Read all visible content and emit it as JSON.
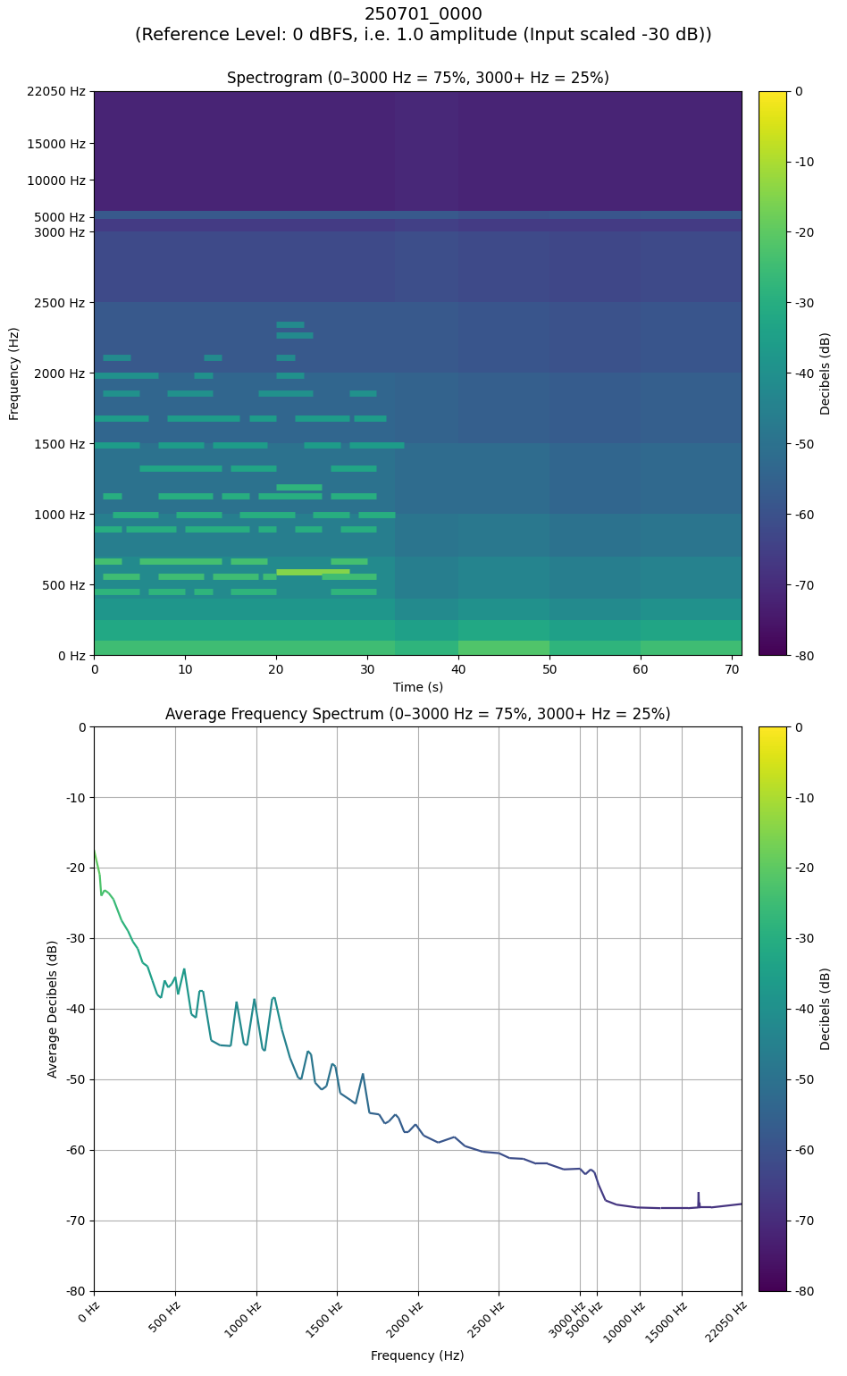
{
  "title": "250701_0000\n(Reference Level: 0 dBFS, i.e. 1.0 amplitude (Input scaled -30 dB))",
  "chart_data": [
    {
      "type": "heatmap",
      "title": "Spectrogram (0–3000 Hz = 75%, 3000+ Hz = 25%)",
      "xlabel": "Time (s)",
      "ylabel": "Frequency (Hz)",
      "color": "viridis",
      "xlim": [
        0,
        71.1
      ],
      "xticks": [
        0,
        10,
        20,
        30,
        40,
        50,
        60,
        70
      ],
      "ylim": [
        0,
        22050
      ],
      "yticks": [
        {
          "value": 0,
          "label": "0 Hz"
        },
        {
          "value": 500,
          "label": "500 Hz"
        },
        {
          "value": 1000,
          "label": "1000 Hz"
        },
        {
          "value": 1500,
          "label": "1500 Hz"
        },
        {
          "value": 2000,
          "label": "2000 Hz"
        },
        {
          "value": 2500,
          "label": "2500 Hz"
        },
        {
          "value": 3000,
          "label": "3000 Hz"
        },
        {
          "value": 5000,
          "label": "5000 Hz"
        },
        {
          "value": 10000,
          "label": "10000 Hz"
        },
        {
          "value": 15000,
          "label": "15000 Hz"
        },
        {
          "value": 22050,
          "label": "22050 Hz"
        }
      ],
      "x_edges": [
        0,
        10,
        20,
        33,
        40,
        50,
        60,
        71.1
      ],
      "y_edges": [
        0,
        100,
        250,
        400,
        700,
        1000,
        1500,
        2000,
        2500,
        3000,
        4800,
        5800,
        22050
      ],
      "cells": [
        [
          -25,
          -25,
          -25,
          -28,
          -22,
          -28,
          -25
        ],
        [
          -32,
          -32,
          -32,
          -35,
          -32,
          -35,
          -33
        ],
        [
          -38,
          -38,
          -38,
          -42,
          -40,
          -42,
          -40
        ],
        [
          -42,
          -42,
          -42,
          -46,
          -44,
          -46,
          -45
        ],
        [
          -46,
          -46,
          -46,
          -49,
          -48,
          -50,
          -49
        ],
        [
          -50,
          -50,
          -50,
          -52,
          -52,
          -54,
          -53
        ],
        [
          -54,
          -54,
          -54,
          -55,
          -56,
          -57,
          -56
        ],
        [
          -58,
          -58,
          -58,
          -58,
          -59,
          -60,
          -59
        ],
        [
          -62,
          -62,
          -62,
          -61,
          -62,
          -63,
          -62
        ],
        [
          -66,
          -66,
          -66,
          -65,
          -66,
          -66,
          -66
        ],
        [
          -58,
          -58,
          -58,
          -58,
          -60,
          -59,
          -58
        ],
        [
          -72,
          -72,
          -72,
          -71,
          -72,
          -72,
          -72
        ]
      ],
      "notes": [
        {
          "freq": 2346,
          "db": -42,
          "spans": [
            [
              20,
              23
            ]
          ]
        },
        {
          "freq": 2270,
          "db": -42,
          "spans": [
            [
              20,
              24
            ]
          ]
        },
        {
          "freq": 2112,
          "db": -42,
          "spans": [
            [
              1,
              4
            ],
            [
              12,
              14
            ],
            [
              20,
              22
            ]
          ]
        },
        {
          "freq": 1985,
          "db": -40,
          "spans": [
            [
              0,
              7
            ],
            [
              11,
              13
            ],
            [
              20,
              23
            ]
          ]
        },
        {
          "freq": 1858,
          "db": -40,
          "spans": [
            [
              1,
              5
            ],
            [
              8,
              13
            ],
            [
              18,
              24
            ],
            [
              28,
              31
            ]
          ]
        },
        {
          "freq": 1680,
          "db": -36,
          "spans": [
            [
              0,
              6
            ],
            [
              8,
              16
            ],
            [
              17,
              20
            ],
            [
              22,
              28
            ],
            [
              28.5,
              32
            ]
          ]
        },
        {
          "freq": 1490,
          "db": -36,
          "spans": [
            [
              0,
              5
            ],
            [
              7,
              12
            ],
            [
              13,
              19
            ],
            [
              23,
              27
            ],
            [
              28,
              34
            ]
          ]
        },
        {
          "freq": 1325,
          "db": -33,
          "spans": [
            [
              5,
              14
            ],
            [
              15,
              20
            ],
            [
              26,
              31
            ]
          ]
        },
        {
          "freq": 1192,
          "db": -28,
          "spans": [
            [
              20,
              25
            ]
          ]
        },
        {
          "freq": 1129,
          "db": -30,
          "spans": [
            [
              1,
              3
            ],
            [
              7,
              13
            ],
            [
              14,
              17
            ],
            [
              18,
              25
            ],
            [
              26,
              31
            ]
          ]
        },
        {
          "freq": 995,
          "db": -30,
          "spans": [
            [
              2,
              7
            ],
            [
              9,
              14
            ],
            [
              16,
              22
            ],
            [
              24,
              28
            ],
            [
              29,
              33
            ]
          ]
        },
        {
          "freq": 894,
          "db": -30,
          "spans": [
            [
              0,
              3
            ],
            [
              3.5,
              9
            ],
            [
              10,
              17
            ],
            [
              18,
              20
            ],
            [
              22,
              25
            ],
            [
              27,
              31
            ]
          ]
        },
        {
          "freq": 666,
          "db": -24,
          "spans": [
            [
              0,
              3
            ],
            [
              5,
              14
            ],
            [
              15,
              19
            ],
            [
              26,
              30
            ]
          ]
        },
        {
          "freq": 590,
          "db": -15,
          "spans": [
            [
              20,
              28
            ]
          ]
        },
        {
          "freq": 558,
          "db": -25,
          "spans": [
            [
              1,
              5
            ],
            [
              7,
              12
            ],
            [
              13,
              18
            ],
            [
              18.5,
              20
            ],
            [
              25,
              31
            ]
          ]
        },
        {
          "freq": 450,
          "db": -28,
          "spans": [
            [
              0,
              5
            ],
            [
              6,
              10
            ],
            [
              11,
              13
            ],
            [
              15,
              20
            ],
            [
              26,
              31
            ]
          ]
        }
      ],
      "colorbar_label": "Decibels (dB)",
      "colorbar_lim": [
        -80,
        0
      ],
      "colorbar_ticks": [
        0,
        -10,
        -20,
        -30,
        -40,
        -50,
        -60,
        -70,
        -80
      ]
    },
    {
      "type": "line",
      "title": "Average Frequency Spectrum (0–3000 Hz = 75%, 3000+ Hz = 25%)",
      "xlabel": "Frequency (Hz)",
      "ylabel": "Average Decibels (dB)",
      "color": "viridis",
      "grid": true,
      "xlim": [
        0,
        22050
      ],
      "xticks": [
        {
          "value": 0,
          "label": "0 Hz"
        },
        {
          "value": 500,
          "label": "500 Hz"
        },
        {
          "value": 1000,
          "label": "1000 Hz"
        },
        {
          "value": 1500,
          "label": "1500 Hz"
        },
        {
          "value": 2000,
          "label": "2000 Hz"
        },
        {
          "value": 2500,
          "label": "2500 Hz"
        },
        {
          "value": 3000,
          "label": "3000 Hz"
        },
        {
          "value": 5000,
          "label": "5000 Hz"
        },
        {
          "value": 10000,
          "label": "10000 Hz"
        },
        {
          "value": 15000,
          "label": "15000 Hz"
        },
        {
          "value": 22050,
          "label": "22050 Hz"
        }
      ],
      "ylim": [
        -80,
        0
      ],
      "yticks": [
        0,
        -10,
        -20,
        -30,
        -40,
        -50,
        -60,
        -70,
        -80
      ],
      "x": [
        0,
        15,
        35,
        45,
        65,
        90,
        120,
        170,
        210,
        240,
        270,
        300,
        330,
        360,
        390,
        414,
        436,
        458,
        480,
        502,
        519,
        557,
        601,
        629,
        651,
        673,
        723,
        778,
        844,
        880,
        925,
        945,
        990,
        1040,
        1055,
        1100,
        1115,
        1160,
        1210,
        1260,
        1280,
        1320,
        1340,
        1365,
        1405,
        1435,
        1470,
        1490,
        1520,
        1585,
        1615,
        1660,
        1700,
        1760,
        1795,
        1820,
        1860,
        1880,
        1915,
        1940,
        1985,
        2035,
        2125,
        2225,
        2290,
        2400,
        2500,
        2565,
        2650,
        2730,
        2800,
        2900,
        3000,
        3630,
        4260,
        4700,
        5200,
        6000,
        7300,
        9700,
        12500,
        15700,
        16900,
        16950,
        17000,
        17050,
        17100,
        18400,
        22050
      ],
      "values": [
        -17.5,
        -19,
        -21,
        -24,
        -23.2,
        -23.6,
        -24.5,
        -27.5,
        -29,
        -30.5,
        -31.5,
        -33.5,
        -34,
        -36,
        -38,
        -38.5,
        -36,
        -37,
        -36.5,
        -35.5,
        -38,
        -34.3,
        -40.8,
        -41.3,
        -37.5,
        -37.5,
        -44.5,
        -45.2,
        -45.3,
        -39,
        -45,
        -45.2,
        -38.6,
        -45.7,
        -46,
        -38.6,
        -38.4,
        -43,
        -47,
        -49.8,
        -50,
        -46,
        -46.5,
        -50.5,
        -51.5,
        -51,
        -47.8,
        -48.2,
        -52,
        -53,
        -53.5,
        -49.2,
        -54.8,
        -55,
        -56.3,
        -56,
        -55,
        -55.5,
        -57.5,
        -57.5,
        -56.4,
        -58,
        -59,
        -58.2,
        -59.5,
        -60.3,
        -60.5,
        -61.2,
        -61.3,
        -62,
        -62,
        -62.8,
        -62.7,
        -63.5,
        -62.8,
        -63.2,
        -65,
        -67.2,
        -67.8,
        -68.2,
        -68.3,
        -68.3,
        -68.2,
        -66,
        -68.3,
        -67.5,
        -68.2,
        -68.2,
        -67.7
      ],
      "colorbar_label": "Decibels (dB)",
      "colorbar_lim": [
        -80,
        0
      ],
      "colorbar_ticks": [
        0,
        -10,
        -20,
        -30,
        -40,
        -50,
        -60,
        -70,
        -80
      ]
    }
  ]
}
